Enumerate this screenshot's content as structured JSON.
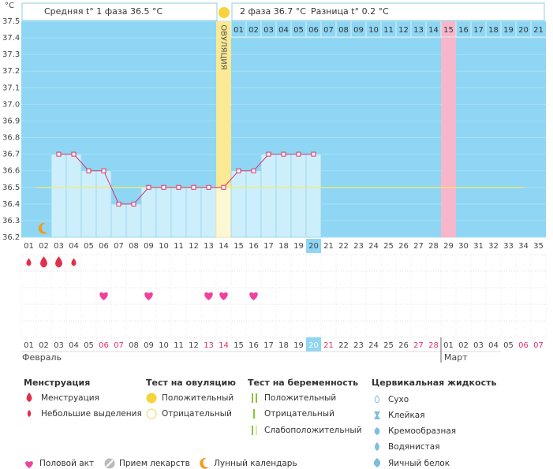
{
  "header": {
    "phase1": "Средняя t° 1 фаза 36.5 °C",
    "phase2": "2 фаза 36.7 °C",
    "difference": "Разница t° 0.2 °C",
    "ovulation_label": "ОВУЛЯЦИЯ"
  },
  "chart_data": {
    "type": "line",
    "y_unit": "°C",
    "categories": [
      "01",
      "02",
      "03",
      "04",
      "05",
      "06",
      "07",
      "08",
      "09",
      "10",
      "11",
      "12",
      "13",
      "14",
      "15",
      "16",
      "17",
      "18",
      "19",
      "20",
      "21",
      "22",
      "23",
      "24",
      "25",
      "26",
      "27",
      "28",
      "29",
      "30",
      "31",
      "32",
      "33",
      "34",
      "35"
    ],
    "values": [
      null,
      null,
      36.7,
      36.7,
      36.6,
      36.6,
      36.4,
      36.4,
      36.5,
      36.5,
      36.5,
      36.5,
      36.5,
      36.5,
      36.6,
      36.6,
      36.7,
      36.7,
      36.7,
      36.7,
      null,
      null,
      null,
      null,
      null,
      null,
      null,
      null,
      null,
      null,
      null,
      null,
      null,
      null,
      null
    ],
    "color": "#d9306b",
    "bar_color": "#cdeefb",
    "background_color": "#8ed6f3",
    "cover_line": 36.5,
    "cover_line_color": "#f2ec6a",
    "ylim": [
      36.2,
      37.5
    ],
    "yticks": [
      36.2,
      36.3,
      36.4,
      36.5,
      36.6,
      36.7,
      36.8,
      36.9,
      {
        "value": 37,
        "label": "37.0"
      },
      37.1,
      37.2,
      37.3,
      37.4,
      37.5
    ],
    "ovulation_day": 14,
    "expected_period_day": 29,
    "today_day": 20,
    "phase2_start_day": 15,
    "phase2_labels": [
      "01",
      "02",
      "03",
      "04",
      "05",
      "06",
      "07",
      "08",
      "09",
      "10",
      "11",
      "12",
      "13",
      "14",
      "15",
      "16",
      "17",
      "18",
      "19",
      "20",
      "21"
    ],
    "menstruation_days": [
      1,
      2,
      3,
      4
    ],
    "menstruation_heavy": [
      false,
      true,
      true,
      false
    ],
    "intercourse_days": [
      6,
      9,
      13,
      14,
      16
    ],
    "moon_day": 2,
    "dates": [
      "01",
      "02",
      "03",
      "04",
      "05",
      "06",
      "07",
      "08",
      "09",
      "10",
      "11",
      "12",
      "13",
      "14",
      "15",
      "16",
      "17",
      "18",
      "19",
      "20",
      "21",
      "22",
      "23",
      "24",
      "25",
      "26",
      "27",
      "28",
      "01",
      "02",
      "03",
      "04",
      "05",
      "06",
      "07"
    ],
    "weekend_days": [
      6,
      7,
      13,
      14,
      20,
      21,
      27,
      28,
      34,
      35
    ],
    "months": [
      {
        "label": "Февраль",
        "start_day": 1
      },
      {
        "label": "Март",
        "start_day": 29
      }
    ]
  },
  "legend": {
    "menstruation": {
      "title": "Менструация",
      "items": [
        "Менструация",
        "Небольшие выделения"
      ]
    },
    "ovulation_test": {
      "title": "Тест на овуляцию",
      "items": [
        "Положительный",
        "Отрицательный"
      ]
    },
    "pregnancy_test": {
      "title": "Тест на беременность",
      "items": [
        "Положительный",
        "Отрицательный",
        "Слабоположительный"
      ]
    },
    "cervical_fluid": {
      "title": "Цервикальная жидкость",
      "items": [
        "Сухо",
        "Клейкая",
        "Кремообразная",
        "Водянистая",
        "Яичный белок"
      ]
    },
    "other": [
      "Половой акт",
      "Прием лекарств",
      "Лунный календарь"
    ]
  }
}
